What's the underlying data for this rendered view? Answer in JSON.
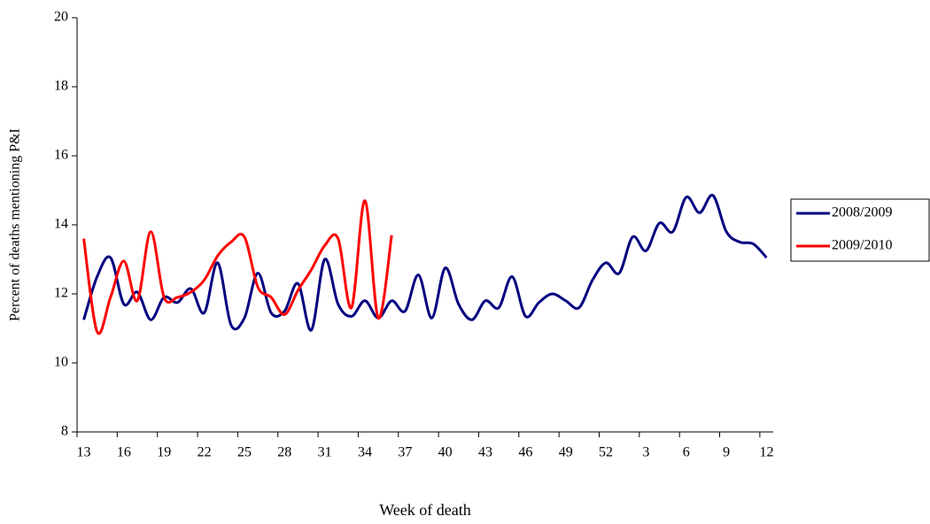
{
  "chart_data": {
    "type": "line",
    "y_label": "Percent of deaths mentioning P&I",
    "x_label": "Week of death",
    "categories": [
      "13",
      null,
      null,
      "16",
      null,
      null,
      "19",
      null,
      null,
      "22",
      null,
      null,
      "25",
      null,
      null,
      "28",
      null,
      null,
      "31",
      null,
      null,
      "34",
      null,
      null,
      "37",
      null,
      null,
      "40",
      null,
      null,
      "43",
      null,
      null,
      "46",
      null,
      null,
      "49",
      null,
      null,
      "52",
      null,
      null,
      "3",
      null,
      null,
      "6",
      null,
      null,
      "9",
      null,
      null,
      "12"
    ],
    "series": [
      {
        "name": "2008/2009",
        "color": "#000080",
        "values": [
          11.25,
          12.5,
          13.05,
          11.7,
          12.05,
          11.25,
          11.9,
          11.75,
          12.15,
          11.45,
          12.9,
          11.1,
          11.3,
          12.6,
          11.45,
          11.5,
          12.3,
          10.95,
          13.0,
          11.7,
          11.35,
          11.8,
          11.3,
          11.8,
          11.5,
          12.55,
          11.3,
          12.75,
          11.7,
          11.25,
          11.8,
          11.6,
          12.5,
          11.35,
          11.75,
          12.0,
          11.8,
          11.6,
          12.4,
          12.9,
          12.6,
          13.65,
          13.25,
          14.05,
          13.8,
          14.8,
          14.35,
          14.85,
          13.8,
          13.5,
          13.45,
          13.05
        ]
      },
      {
        "name": "2009/2010",
        "color": "#ff0000",
        "values": [
          13.6,
          10.9,
          11.9,
          12.95,
          11.8,
          13.8,
          11.9,
          11.9,
          12.05,
          12.4,
          13.1,
          13.5,
          13.65,
          12.2,
          11.9,
          11.4,
          12.1,
          12.7,
          13.4,
          13.6,
          11.6,
          14.7,
          11.3,
          13.7,
          null,
          null,
          null,
          null,
          null,
          null,
          null,
          null,
          null,
          null,
          null,
          null,
          null,
          null,
          null,
          null,
          null,
          null,
          null,
          null,
          null,
          null,
          null,
          null,
          null,
          null,
          null,
          null
        ]
      }
    ],
    "ylim": [
      8,
      20
    ],
    "yticks": [
      8,
      10,
      12,
      14,
      16,
      18,
      20
    ],
    "grid": false,
    "legend": "right"
  }
}
